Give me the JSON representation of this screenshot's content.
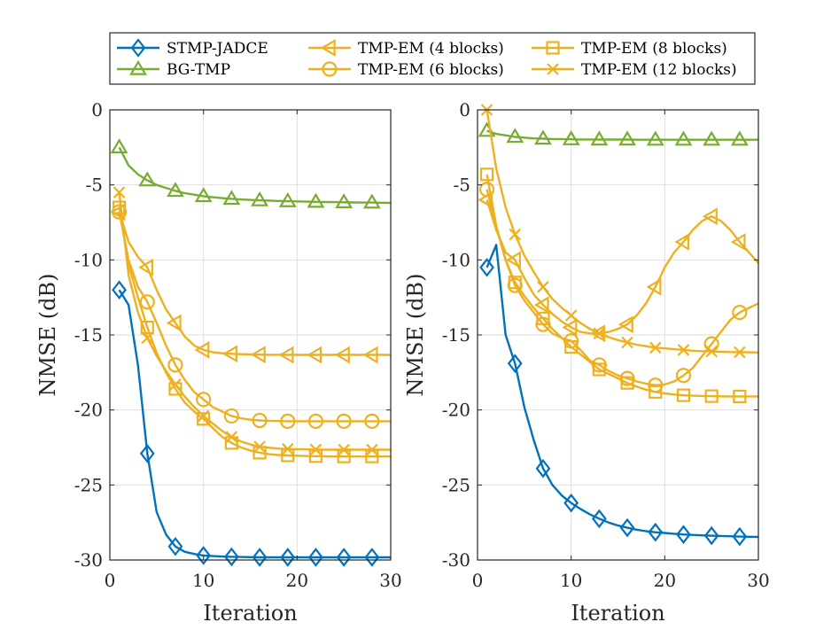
{
  "chart_data": {
    "type": "line",
    "legend": {
      "placement": "top",
      "entries": [
        {
          "key": "stmp",
          "label": "STMP-JADCE",
          "color": "#0072BD",
          "marker": "diamond"
        },
        {
          "key": "bg",
          "label": "BG-TMP",
          "color": "#77AC30",
          "marker": "triangle-up"
        },
        {
          "key": "t4",
          "label": "TMP-EM (4 blocks)",
          "color": "#EDB120",
          "marker": "triangle-left"
        },
        {
          "key": "t6",
          "label": "TMP-EM (6 blocks)",
          "color": "#EDB120",
          "marker": "circle"
        },
        {
          "key": "t8",
          "label": "TMP-EM (8 blocks)",
          "color": "#EDB120",
          "marker": "square"
        },
        {
          "key": "t12",
          "label": "TMP-EM (12 blocks)",
          "color": "#EDB120",
          "marker": "x"
        }
      ]
    },
    "panels": [
      {
        "xlabel": "Iteration",
        "ylabel": "NMSE (dB)",
        "xlim": [
          0,
          30
        ],
        "ylim": [
          -30,
          0
        ],
        "xticks": [
          "0",
          "10",
          "20",
          "30"
        ],
        "yticks": [
          "0",
          "-5",
          "-10",
          "-15",
          "-20",
          "-25",
          "-30"
        ],
        "grid": true,
        "series": [
          {
            "key": "bg",
            "x": [
              1,
              2,
              3,
              4,
              5,
              6,
              7,
              8,
              9,
              10,
              11,
              12,
              13,
              14,
              15,
              16,
              17,
              18,
              19,
              20,
              21,
              22,
              23,
              24,
              25,
              26,
              27,
              28,
              29,
              30
            ],
            "y": [
              -2.5,
              -3.7,
              -4.3,
              -4.7,
              -5.0,
              -5.2,
              -5.4,
              -5.55,
              -5.65,
              -5.75,
              -5.82,
              -5.88,
              -5.93,
              -5.97,
              -6.0,
              -6.03,
              -6.05,
              -6.07,
              -6.09,
              -6.1,
              -6.12,
              -6.13,
              -6.14,
              -6.15,
              -6.16,
              -6.17,
              -6.18,
              -6.18,
              -6.19,
              -6.2
            ]
          },
          {
            "key": "t4",
            "x": [
              1,
              2,
              3,
              4,
              5,
              6,
              7,
              8,
              9,
              10,
              11,
              12,
              13,
              14,
              15,
              16,
              17,
              18,
              19,
              20,
              21,
              22,
              23,
              24,
              25,
              26,
              27,
              28,
              29,
              30
            ],
            "y": [
              -6.8,
              -8.8,
              -9.8,
              -10.5,
              -12.0,
              -13.3,
              -14.2,
              -15.1,
              -15.7,
              -16.0,
              -16.15,
              -16.22,
              -16.26,
              -16.28,
              -16.3,
              -16.31,
              -16.32,
              -16.32,
              -16.33,
              -16.33,
              -16.33,
              -16.33,
              -16.33,
              -16.33,
              -16.33,
              -16.33,
              -16.33,
              -16.33,
              -16.33,
              -16.33
            ]
          },
          {
            "key": "t6",
            "x": [
              1,
              2,
              3,
              4,
              5,
              6,
              7,
              8,
              9,
              10,
              11,
              12,
              13,
              14,
              15,
              16,
              17,
              18,
              19,
              20,
              21,
              22,
              23,
              24,
              25,
              26,
              27,
              28,
              29,
              30
            ],
            "y": [
              -6.8,
              -10.0,
              -11.8,
              -12.8,
              -14.2,
              -15.7,
              -17.0,
              -18.0,
              -18.8,
              -19.3,
              -19.8,
              -20.1,
              -20.4,
              -20.55,
              -20.65,
              -20.7,
              -20.72,
              -20.74,
              -20.75,
              -20.75,
              -20.75,
              -20.75,
              -20.75,
              -20.75,
              -20.75,
              -20.75,
              -20.75,
              -20.75,
              -20.75,
              -20.75
            ]
          },
          {
            "key": "t8",
            "x": [
              1,
              2,
              3,
              4,
              5,
              6,
              7,
              8,
              9,
              10,
              11,
              12,
              13,
              14,
              15,
              16,
              17,
              18,
              19,
              20,
              21,
              22,
              23,
              24,
              25,
              26,
              27,
              28,
              29,
              30
            ],
            "y": [
              -6.5,
              -10.3,
              -12.5,
              -14.5,
              -16.2,
              -17.5,
              -18.6,
              -19.5,
              -20.1,
              -20.6,
              -21.2,
              -21.8,
              -22.2,
              -22.5,
              -22.7,
              -22.85,
              -22.95,
              -23.0,
              -23.03,
              -23.05,
              -23.07,
              -23.08,
              -23.09,
              -23.1,
              -23.1,
              -23.1,
              -23.1,
              -23.1,
              -23.1,
              -23.1
            ]
          },
          {
            "key": "t12",
            "x": [
              1,
              2,
              3,
              4,
              5,
              6,
              7,
              8,
              9,
              10,
              11,
              12,
              13,
              14,
              15,
              16,
              17,
              18,
              19,
              20,
              21,
              22,
              23,
              24,
              25,
              26,
              27,
              28,
              29,
              30
            ],
            "y": [
              -5.5,
              -11.0,
              -13.5,
              -15.2,
              -16.4,
              -17.4,
              -18.3,
              -19.1,
              -19.8,
              -20.4,
              -20.9,
              -21.4,
              -21.8,
              -22.1,
              -22.3,
              -22.45,
              -22.52,
              -22.57,
              -22.6,
              -22.62,
              -22.63,
              -22.64,
              -22.65,
              -22.65,
              -22.65,
              -22.65,
              -22.65,
              -22.65,
              -22.65,
              -22.65
            ]
          },
          {
            "key": "stmp",
            "x": [
              1,
              2,
              3,
              4,
              5,
              6,
              7,
              8,
              9,
              10,
              11,
              12,
              13,
              14,
              15,
              16,
              17,
              18,
              19,
              20,
              21,
              22,
              23,
              24,
              25,
              26,
              27,
              28,
              29,
              30
            ],
            "y": [
              -12.0,
              -13.0,
              -17.0,
              -22.9,
              -26.8,
              -28.3,
              -29.1,
              -29.45,
              -29.6,
              -29.7,
              -29.74,
              -29.77,
              -29.79,
              -29.8,
              -29.81,
              -29.82,
              -29.82,
              -29.82,
              -29.82,
              -29.82,
              -29.82,
              -29.82,
              -29.82,
              -29.82,
              -29.82,
              -29.82,
              -29.82,
              -29.82,
              -29.82,
              -29.82
            ]
          }
        ]
      },
      {
        "xlabel": "Iteration",
        "ylabel": "NMSE (dB)",
        "xlim": [
          0,
          30
        ],
        "ylim": [
          -30,
          0
        ],
        "xticks": [
          "0",
          "10",
          "20",
          "30"
        ],
        "yticks": [
          "0",
          "-5",
          "-10",
          "-15",
          "-20",
          "-25",
          "-30"
        ],
        "grid": true,
        "series": [
          {
            "key": "bg",
            "x": [
              1,
              2,
              3,
              4,
              5,
              6,
              7,
              8,
              9,
              10,
              11,
              12,
              13,
              14,
              15,
              16,
              17,
              18,
              19,
              20,
              21,
              22,
              23,
              24,
              25,
              26,
              27,
              28,
              29,
              30
            ],
            "y": [
              -1.4,
              -1.6,
              -1.7,
              -1.8,
              -1.85,
              -1.9,
              -1.92,
              -1.94,
              -1.95,
              -1.96,
              -1.97,
              -1.97,
              -1.98,
              -1.98,
              -1.98,
              -1.98,
              -1.99,
              -1.99,
              -1.99,
              -1.99,
              -1.99,
              -1.99,
              -1.99,
              -1.99,
              -1.99,
              -1.99,
              -1.99,
              -1.99,
              -1.99,
              -1.99
            ]
          },
          {
            "key": "t4",
            "x": [
              1,
              2,
              3,
              4,
              5,
              6,
              7,
              8,
              9,
              10,
              11,
              12,
              13,
              14,
              15,
              16,
              17,
              18,
              19,
              20,
              21,
              22,
              23,
              24,
              25,
              26,
              27,
              28,
              29,
              30
            ],
            "y": [
              -6.0,
              -8.0,
              -9.5,
              -10.0,
              -11.2,
              -12.3,
              -13.0,
              -13.6,
              -14.1,
              -14.5,
              -14.8,
              -14.9,
              -14.9,
              -14.8,
              -14.6,
              -14.3,
              -13.7,
              -12.9,
              -11.8,
              -10.5,
              -9.5,
              -8.8,
              -8.0,
              -7.4,
              -7.1,
              -7.4,
              -8.0,
              -8.8,
              -9.5,
              -10.2
            ]
          },
          {
            "key": "t6",
            "x": [
              1,
              2,
              3,
              4,
              5,
              6,
              7,
              8,
              9,
              10,
              11,
              12,
              13,
              14,
              15,
              16,
              17,
              18,
              19,
              20,
              21,
              22,
              23,
              24,
              25,
              26,
              27,
              28,
              29,
              30
            ],
            "y": [
              -5.3,
              -7.8,
              -10.0,
              -11.7,
              -12.7,
              -13.5,
              -14.3,
              -14.9,
              -15.2,
              -15.4,
              -16.0,
              -16.7,
              -17.0,
              -17.4,
              -17.7,
              -17.9,
              -18.1,
              -18.25,
              -18.35,
              -18.3,
              -18.1,
              -17.7,
              -17.2,
              -16.4,
              -15.6,
              -14.8,
              -14.0,
              -13.5,
              -13.2,
              -12.9
            ]
          },
          {
            "key": "t8",
            "x": [
              1,
              2,
              3,
              4,
              5,
              6,
              7,
              8,
              9,
              10,
              11,
              12,
              13,
              14,
              15,
              16,
              17,
              18,
              19,
              20,
              21,
              22,
              23,
              24,
              25,
              26,
              27,
              28,
              29,
              30
            ],
            "y": [
              -4.3,
              -7.7,
              -10.0,
              -11.5,
              -12.4,
              -13.2,
              -13.9,
              -14.6,
              -15.2,
              -15.8,
              -16.3,
              -16.8,
              -17.3,
              -17.6,
              -17.9,
              -18.2,
              -18.45,
              -18.65,
              -18.8,
              -18.9,
              -18.97,
              -19.02,
              -19.05,
              -19.07,
              -19.08,
              -19.09,
              -19.1,
              -19.1,
              -19.1,
              -19.1
            ]
          },
          {
            "key": "t12",
            "x": [
              1,
              2,
              3,
              4,
              5,
              6,
              7,
              8,
              9,
              10,
              11,
              12,
              13,
              14,
              15,
              16,
              17,
              18,
              19,
              20,
              21,
              22,
              23,
              24,
              25,
              26,
              27,
              28,
              29,
              30
            ],
            "y": [
              0.0,
              -3.9,
              -6.5,
              -8.3,
              -9.7,
              -10.8,
              -11.8,
              -12.6,
              -13.2,
              -13.7,
              -14.2,
              -14.6,
              -14.9,
              -15.15,
              -15.35,
              -15.5,
              -15.65,
              -15.75,
              -15.85,
              -15.9,
              -15.95,
              -16.0,
              -16.05,
              -16.08,
              -16.1,
              -16.12,
              -16.14,
              -16.15,
              -16.16,
              -16.17
            ]
          },
          {
            "key": "stmp",
            "x": [
              1,
              2,
              3,
              4,
              5,
              6,
              7,
              8,
              9,
              10,
              11,
              12,
              13,
              14,
              15,
              16,
              17,
              18,
              19,
              20,
              21,
              22,
              23,
              24,
              25,
              26,
              27,
              28,
              29,
              30
            ],
            "y": [
              -10.5,
              -9.0,
              -15.0,
              -16.9,
              -19.8,
              -22.0,
              -23.9,
              -25.0,
              -25.7,
              -26.2,
              -26.6,
              -26.95,
              -27.25,
              -27.5,
              -27.7,
              -27.85,
              -27.98,
              -28.08,
              -28.15,
              -28.2,
              -28.25,
              -28.3,
              -28.33,
              -28.36,
              -28.38,
              -28.4,
              -28.42,
              -28.44,
              -28.45,
              -28.46
            ]
          }
        ]
      }
    ]
  }
}
